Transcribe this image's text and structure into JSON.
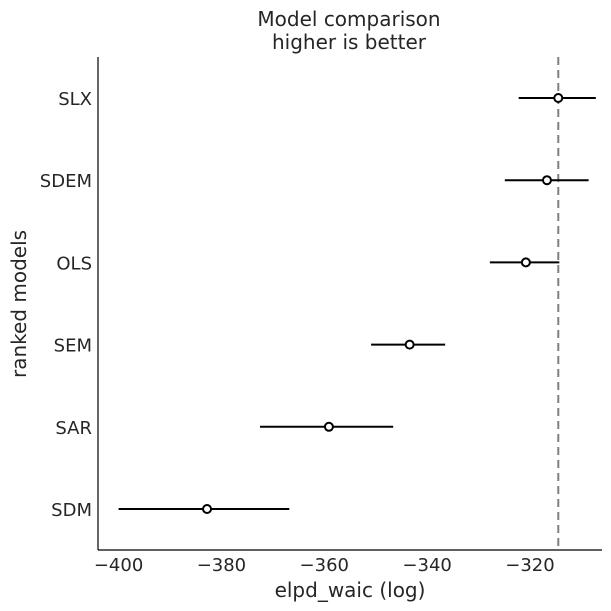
{
  "chart_data": {
    "type": "forest",
    "title": [
      "Model comparison",
      "higher is better"
    ],
    "xlabel": "elpd_waic (log)",
    "ylabel": "ranked models",
    "xlim": [
      -404,
      -306
    ],
    "xticks": [
      -400,
      -380,
      -360,
      -340,
      -320
    ],
    "xtick_labels": [
      "−400",
      "−380",
      "−360",
      "−340",
      "−320"
    ],
    "reference_line": -314.5,
    "models": [
      {
        "name": "SLX",
        "elpd": -314.5,
        "low": -322.2,
        "high": -307.2
      },
      {
        "name": "SDEM",
        "elpd": -316.7,
        "low": -324.9,
        "high": -308.6
      },
      {
        "name": "OLS",
        "elpd": -320.8,
        "low": -327.8,
        "high": -314.3
      },
      {
        "name": "SEM",
        "elpd": -343.4,
        "low": -350.9,
        "high": -336.5
      },
      {
        "name": "SAR",
        "elpd": -359.1,
        "low": -372.5,
        "high": -346.6
      },
      {
        "name": "SDM",
        "elpd": -382.8,
        "low": -400.0,
        "high": -366.8
      }
    ],
    "colors": {
      "marker_fill": "#ffffff",
      "line": "#000000",
      "reference": "#808080",
      "text": "#262626"
    },
    "grid": false
  }
}
